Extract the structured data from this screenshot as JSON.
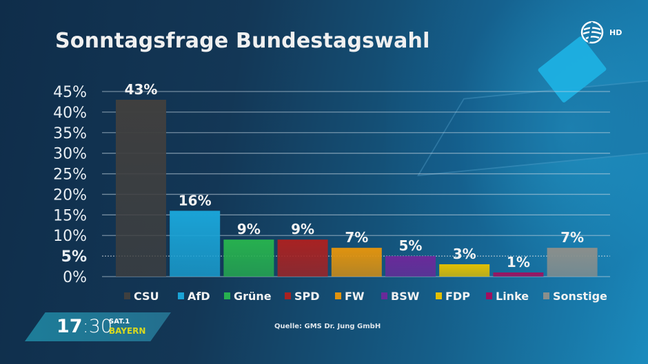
{
  "header": {
    "title": "Sonntagsfrage Bundestagswahl",
    "channel_logo_label": "HD"
  },
  "chart_data": {
    "type": "bar",
    "title": "Sonntagsfrage Bundestagswahl",
    "xlabel": "",
    "ylabel": "",
    "ylim": [
      0,
      45
    ],
    "yticks": [
      0,
      5,
      10,
      15,
      20,
      25,
      30,
      35,
      40,
      45
    ],
    "ytick_labels": [
      "0%",
      "5%",
      "10%",
      "15%",
      "20%",
      "25%",
      "30%",
      "35%",
      "40%",
      "45%"
    ],
    "highlight_line": 5,
    "grid": true,
    "legend_position": "bottom",
    "categories": [
      "CSU",
      "AfD",
      "Grüne",
      "SPD",
      "FW",
      "BSW",
      "FDP",
      "Linke",
      "Sonstige"
    ],
    "values": [
      43,
      16,
      9,
      9,
      7,
      5,
      3,
      1,
      7
    ],
    "value_labels": [
      "43%",
      "16%",
      "9%",
      "9%",
      "7%",
      "5%",
      "3%",
      "1%",
      "7%"
    ],
    "colors": [
      "#3f3f3f",
      "#1aa3d6",
      "#27b04f",
      "#a82222",
      "#e0930f",
      "#6a2a9a",
      "#e3c000",
      "#a0105f",
      "#8a8f8c"
    ],
    "legend": [
      "CSU",
      "AfD",
      "Grüne",
      "SPD",
      "FW",
      "BSW",
      "FDP",
      "Linke",
      "Sonstige"
    ]
  },
  "footer": {
    "time_hours": "17",
    "time_minutes": "30",
    "channel_line1": "SAT.1",
    "channel_line2": "BAYERN",
    "source": "Quelle: GMS Dr. Jung GmbH"
  }
}
